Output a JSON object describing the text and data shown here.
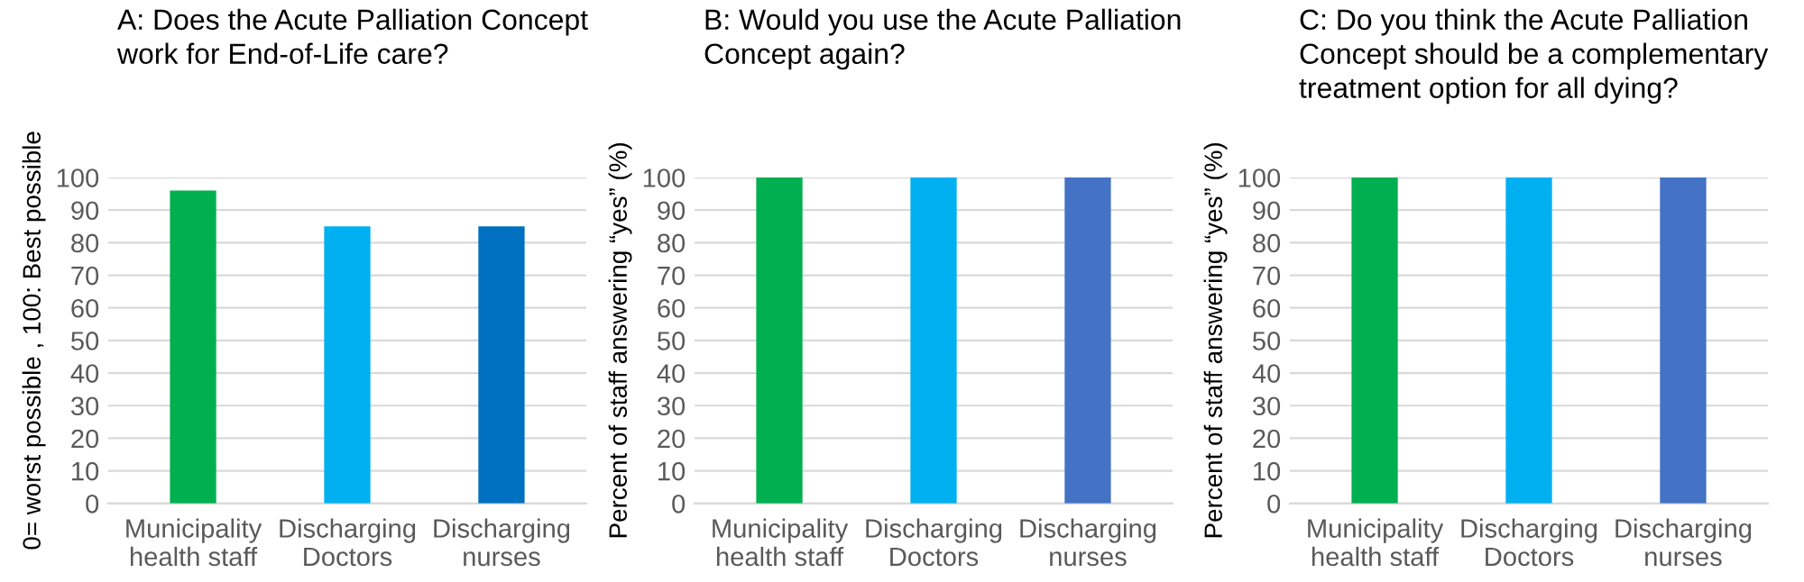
{
  "chart_data": [
    {
      "type": "bar",
      "title": "A: Does the Acute Palliation Concept\nwork for End-of-Life care?",
      "ylabel": "0= worst possible , 100: Best possible",
      "categories": [
        "Municipality\nhealth staff",
        "Discharging\nDoctors",
        "Discharging\nnurses"
      ],
      "values": [
        96,
        85,
        85
      ],
      "colors": [
        "#00b050",
        "#00b0f0",
        "#0070c0"
      ],
      "ylim": [
        0,
        100
      ],
      "yticks": [
        0,
        10,
        20,
        30,
        40,
        50,
        60,
        70,
        80,
        90,
        100
      ],
      "grid": "y"
    },
    {
      "type": "bar",
      "title": "B: Would you use the Acute Palliation\nConcept again?",
      "ylabel": "Percent of staff answering “yes” (%)",
      "categories": [
        "Municipality\nhealth staff",
        "Discharging\nDoctors",
        "Discharging\nnurses"
      ],
      "values": [
        100,
        100,
        100
      ],
      "colors": [
        "#00b050",
        "#00b0f0",
        "#4472c4"
      ],
      "ylim": [
        0,
        100
      ],
      "yticks": [
        0,
        10,
        20,
        30,
        40,
        50,
        60,
        70,
        80,
        90,
        100
      ],
      "grid": "y"
    },
    {
      "type": "bar",
      "title": "C: Do you think the Acute Palliation\nConcept should be a complementary\ntreatment option for all dying?",
      "ylabel": "Percent of staff answering “yes” (%)",
      "categories": [
        "Municipality\nhealth staff",
        "Discharging\nDoctors",
        "Discharging\nnurses"
      ],
      "values": [
        100,
        100,
        100
      ],
      "colors": [
        "#00b050",
        "#00b0f0",
        "#4472c4"
      ],
      "ylim": [
        0,
        100
      ],
      "yticks": [
        0,
        10,
        20,
        30,
        40,
        50,
        60,
        70,
        80,
        90,
        100
      ],
      "grid": "y"
    }
  ]
}
